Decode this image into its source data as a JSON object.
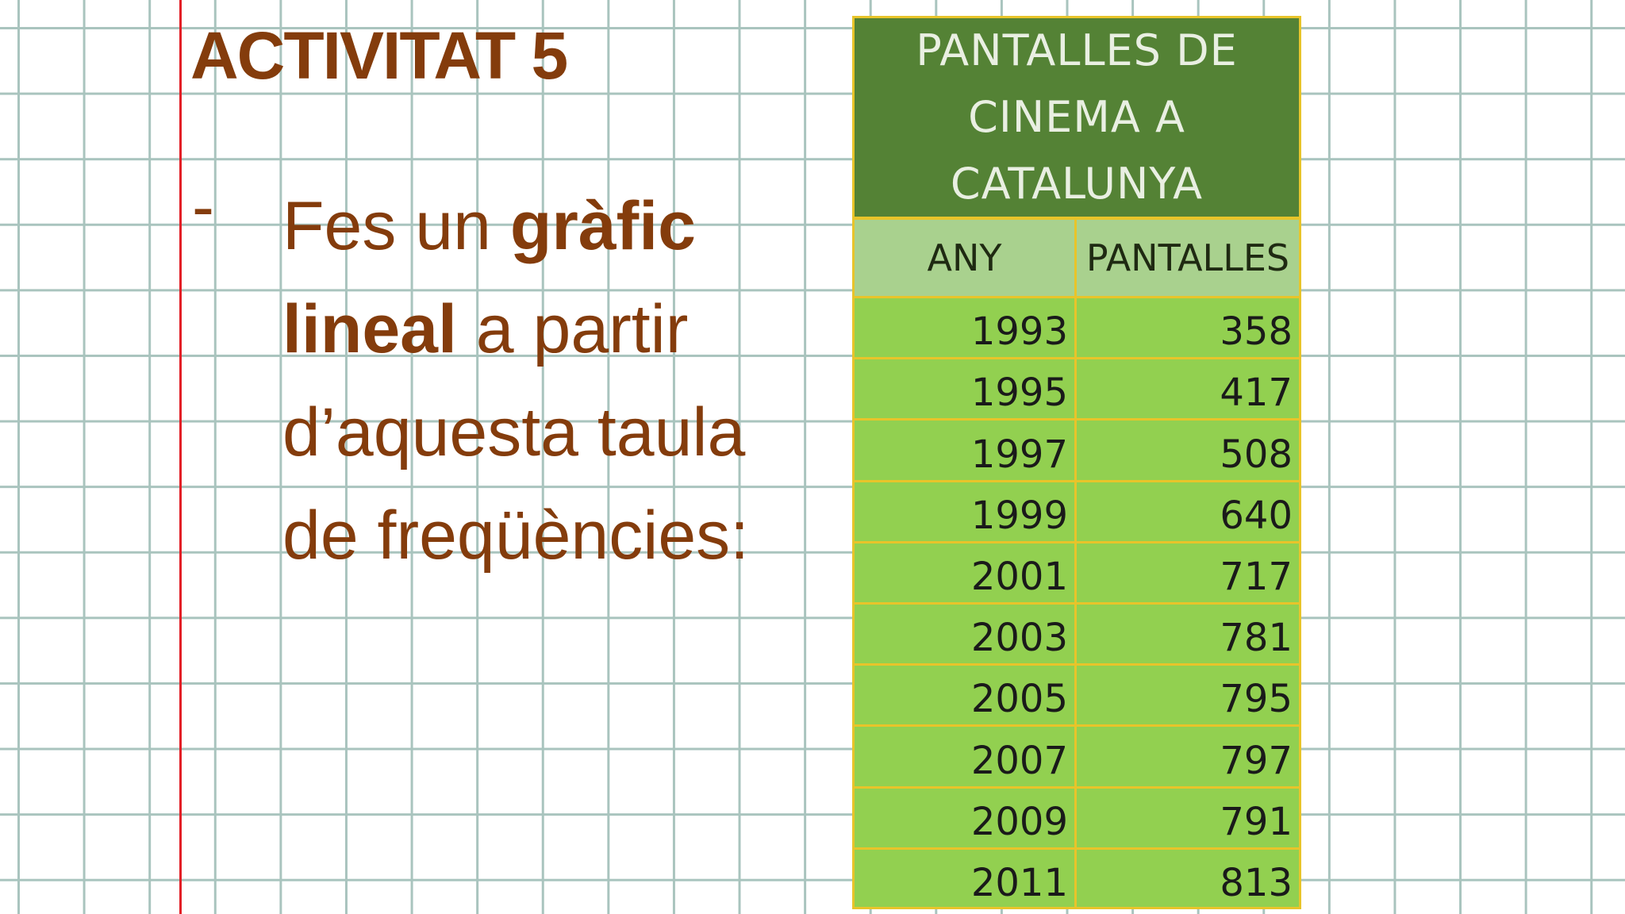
{
  "slide": {
    "title": "ACTIVITAT 5",
    "bullet": "-",
    "text_parts": {
      "p1": "Fes un ",
      "b1": "gràfic lineal",
      "p2": " a partir d’aquesta taula de freqüències:"
    }
  },
  "table": {
    "title": "PANTALLES DE CINEMA A CATALUNYA",
    "columns": [
      "ANY",
      "PANTALLES"
    ],
    "rows": [
      {
        "any": "1993",
        "pantalles": "358"
      },
      {
        "any": "1995",
        "pantalles": "417"
      },
      {
        "any": "1997",
        "pantalles": "508"
      },
      {
        "any": "1999",
        "pantalles": "640"
      },
      {
        "any": "2001",
        "pantalles": "717"
      },
      {
        "any": "2003",
        "pantalles": "781"
      },
      {
        "any": "2005",
        "pantalles": "795"
      },
      {
        "any": "2007",
        "pantalles": "797"
      },
      {
        "any": "2009",
        "pantalles": "791"
      },
      {
        "any": "2011",
        "pantalles": "813"
      }
    ]
  },
  "colors": {
    "title_text": "#843c0c",
    "margin_line": "#e21f26",
    "grid_line": "#a9c4be",
    "table_title_bg": "#548235",
    "table_header_bg": "#a9d18e",
    "table_row_bg": "#92d050",
    "table_border": "#e8c42a"
  }
}
